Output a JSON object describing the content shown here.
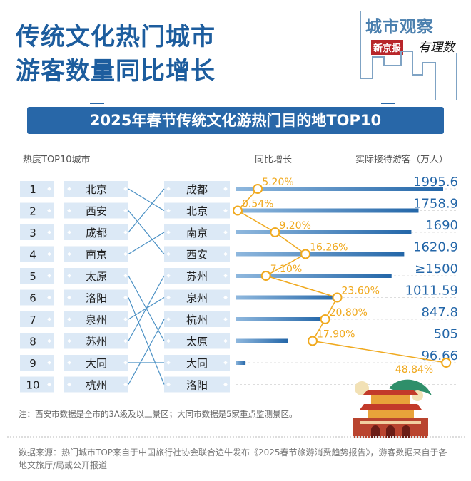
{
  "header": {
    "title_line1": "传统文化热门城市",
    "title_line2": "游客数量同比增长",
    "logo": {
      "top": "城市观察",
      "red": "新京报",
      "hand": "有理数"
    }
  },
  "chart_data": {
    "type": "bar",
    "title": "2025年春节传统文化游热门目的地TOP10",
    "column_headers": {
      "rank": "热度TOP10城市",
      "growth": "同比增长",
      "visitors": "实际接待游客（万人）"
    },
    "ranks": [
      "1",
      "2",
      "3",
      "4",
      "5",
      "6",
      "7",
      "8",
      "9",
      "10"
    ],
    "heat_rank_cities": [
      "北京",
      "西安",
      "成都",
      "南京",
      "太原",
      "洛阳",
      "泉州",
      "苏州",
      "大同",
      "杭州"
    ],
    "categories": [
      "成都",
      "北京",
      "南京",
      "西安",
      "苏州",
      "泉州",
      "杭州",
      "太原",
      "大同",
      "洛阳"
    ],
    "visitors": [
      1995.6,
      1758.9,
      1690,
      1620.9,
      1500,
      1011.59,
      847.8,
      505,
      96.66,
      null
    ],
    "visitor_labels": [
      "1995.6",
      "1758.9",
      "1690",
      "1620.9",
      "≥1500",
      "1011.59",
      "847.8",
      "505",
      "96.66",
      ""
    ],
    "growth_pct": [
      5.2,
      0.54,
      9.2,
      16.26,
      7.1,
      23.6,
      20.8,
      17.9,
      48.84,
      null
    ],
    "growth_labels": [
      "5.20%",
      "0.54%",
      "9.20%",
      "16.26%",
      "7.10%",
      "23.60%",
      "20.80%",
      "17.90%",
      "48.84%",
      ""
    ],
    "colors": {
      "bar": "#2366a8",
      "growth": "#f0a91e",
      "box": "#dce9f6",
      "text_blue": "#2366a8"
    }
  },
  "footer": {
    "note": "注：西安市数据是全市的3A级及以上景区；大同市数据是5家重点监测景区。",
    "source": "数据来源：热门城市TOP来自于中国旅行社协会联合途牛发布《2025春节旅游消费趋势报告》，游客数据来自于各地文旅厅/局或公开报道"
  }
}
